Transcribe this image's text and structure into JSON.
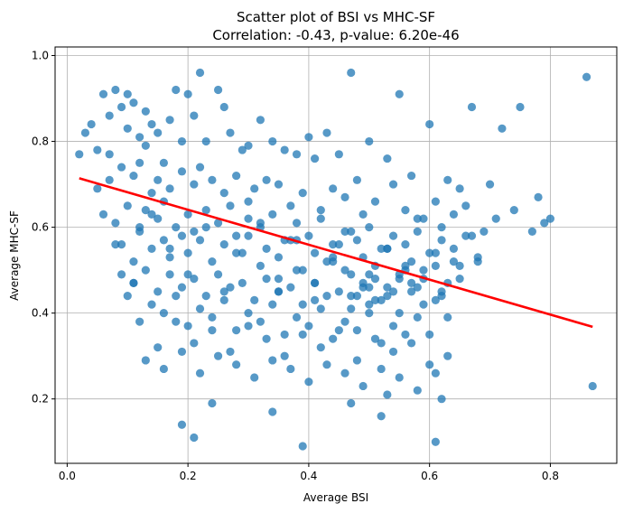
{
  "chart_data": {
    "type": "scatter",
    "title": "Scatter plot of BSI vs MHC-SF",
    "subtitle": "Correlation: -0.43, p-value: 6.20e-46",
    "xlabel": "Average BSI",
    "ylabel": "Average MHC-SF",
    "xlim": [
      -0.02,
      0.91
    ],
    "ylim": [
      0.05,
      1.02
    ],
    "x_ticks": [
      "0.0",
      "0.2",
      "0.4",
      "0.6",
      "0.8"
    ],
    "y_ticks": [
      "0.2",
      "0.4",
      "0.6",
      "0.8",
      "1.0"
    ],
    "grid": true,
    "point_color": "#1f77b4",
    "point_alpha": 0.75,
    "regression_line": {
      "color": "#ff0000",
      "x": [
        0.02,
        0.87
      ],
      "y": [
        0.714,
        0.368
      ]
    },
    "points_x": [
      0.02,
      0.03,
      0.04,
      0.05,
      0.06,
      0.07,
      0.07,
      0.08,
      0.09,
      0.1,
      0.1,
      0.11,
      0.12,
      0.13,
      0.13,
      0.14,
      0.15,
      0.16,
      0.17,
      0.18,
      0.19,
      0.2,
      0.21,
      0.22,
      0.23,
      0.25,
      0.26,
      0.27,
      0.29,
      0.3,
      0.32,
      0.34,
      0.36,
      0.38,
      0.4,
      0.41,
      0.43,
      0.45,
      0.47,
      0.5,
      0.53,
      0.55,
      0.57,
      0.6,
      0.63,
      0.65,
      0.67,
      0.7,
      0.72,
      0.75,
      0.78,
      0.8,
      0.86,
      0.05,
      0.07,
      0.09,
      0.11,
      0.12,
      0.14,
      0.15,
      0.17,
      0.19,
      0.21,
      0.22,
      0.24,
      0.26,
      0.28,
      0.3,
      0.31,
      0.33,
      0.35,
      0.37,
      0.39,
      0.42,
      0.44,
      0.46,
      0.48,
      0.49,
      0.51,
      0.54,
      0.56,
      0.58,
      0.61,
      0.62,
      0.64,
      0.66,
      0.69,
      0.71,
      0.74,
      0.77,
      0.79,
      0.06,
      0.08,
      0.1,
      0.12,
      0.13,
      0.15,
      0.16,
      0.18,
      0.2,
      0.21,
      0.23,
      0.25,
      0.27,
      0.28,
      0.3,
      0.32,
      0.34,
      0.36,
      0.38,
      0.4,
      0.42,
      0.44,
      0.46,
      0.48,
      0.5,
      0.52,
      0.54,
      0.56,
      0.58,
      0.6,
      0.62,
      0.64,
      0.66,
      0.68,
      0.08,
      0.09,
      0.11,
      0.12,
      0.14,
      0.16,
      0.17,
      0.19,
      0.2,
      0.22,
      0.24,
      0.26,
      0.28,
      0.3,
      0.32,
      0.33,
      0.35,
      0.37,
      0.39,
      0.41,
      0.43,
      0.45,
      0.47,
      0.49,
      0.51,
      0.53,
      0.55,
      0.57,
      0.59,
      0.61,
      0.63,
      0.65,
      0.09,
      0.11,
      0.13,
      0.15,
      0.17,
      0.19,
      0.21,
      0.23,
      0.25,
      0.27,
      0.29,
      0.31,
      0.33,
      0.35,
      0.37,
      0.39,
      0.41,
      0.43,
      0.45,
      0.47,
      0.49,
      0.51,
      0.53,
      0.55,
      0.57,
      0.59,
      0.61,
      0.63,
      0.1,
      0.12,
      0.14,
      0.16,
      0.18,
      0.2,
      0.22,
      0.24,
      0.26,
      0.28,
      0.3,
      0.32,
      0.34,
      0.36,
      0.38,
      0.4,
      0.42,
      0.44,
      0.46,
      0.48,
      0.5,
      0.52,
      0.54,
      0.56,
      0.58,
      0.6,
      0.15,
      0.18,
      0.21,
      0.24,
      0.27,
      0.3,
      0.33,
      0.36,
      0.39,
      0.42,
      0.45,
      0.48,
      0.51,
      0.54,
      0.57,
      0.6,
      0.63,
      0.13,
      0.16,
      0.19,
      0.22,
      0.25,
      0.28,
      0.31,
      0.34,
      0.37,
      0.4,
      0.43,
      0.46,
      0.49,
      0.52,
      0.55,
      0.58,
      0.61,
      0.64,
      0.67,
      0.11,
      0.14,
      0.17,
      0.2,
      0.23,
      0.26,
      0.29,
      0.32,
      0.35,
      0.38,
      0.41,
      0.44,
      0.47,
      0.5,
      0.53,
      0.56,
      0.59,
      0.62,
      0.65,
      0.68,
      0.35,
      0.38,
      0.41,
      0.44,
      0.47,
      0.5,
      0.53,
      0.56,
      0.59,
      0.62,
      0.46,
      0.49,
      0.52,
      0.55,
      0.58,
      0.61,
      0.48,
      0.51,
      0.54,
      0.57,
      0.5,
      0.53,
      0.47,
      0.52,
      0.61,
      0.19,
      0.21,
      0.34,
      0.39,
      0.62,
      0.87,
      0.24,
      0.55
    ],
    "points_y": [
      0.77,
      0.82,
      0.84,
      0.78,
      0.91,
      0.86,
      0.71,
      0.92,
      0.88,
      0.83,
      0.91,
      0.89,
      0.81,
      0.87,
      0.79,
      0.84,
      0.82,
      0.75,
      0.85,
      0.92,
      0.8,
      0.91,
      0.86,
      0.96,
      0.8,
      0.92,
      0.88,
      0.82,
      0.78,
      0.79,
      0.85,
      0.8,
      0.78,
      0.77,
      0.81,
      0.76,
      0.82,
      0.77,
      0.96,
      0.8,
      0.76,
      0.91,
      0.72,
      0.84,
      0.71,
      0.69,
      0.88,
      0.7,
      0.83,
      0.88,
      0.67,
      0.62,
      0.95,
      0.69,
      0.77,
      0.74,
      0.72,
      0.75,
      0.68,
      0.71,
      0.69,
      0.73,
      0.7,
      0.74,
      0.71,
      0.68,
      0.72,
      0.66,
      0.69,
      0.71,
      0.7,
      0.65,
      0.68,
      0.64,
      0.69,
      0.67,
      0.71,
      0.63,
      0.66,
      0.7,
      0.64,
      0.62,
      0.66,
      0.6,
      0.63,
      0.65,
      0.59,
      0.62,
      0.64,
      0.59,
      0.61,
      0.63,
      0.61,
      0.65,
      0.6,
      0.64,
      0.62,
      0.66,
      0.6,
      0.63,
      0.59,
      0.64,
      0.61,
      0.65,
      0.58,
      0.62,
      0.6,
      0.63,
      0.57,
      0.61,
      0.58,
      0.62,
      0.56,
      0.59,
      0.57,
      0.6,
      0.55,
      0.58,
      0.56,
      0.59,
      0.54,
      0.57,
      0.55,
      0.58,
      0.53,
      0.56,
      0.56,
      0.52,
      0.59,
      0.55,
      0.57,
      0.53,
      0.58,
      0.54,
      0.57,
      0.52,
      0.56,
      0.54,
      0.58,
      0.51,
      0.55,
      0.53,
      0.57,
      0.5,
      0.54,
      0.52,
      0.56,
      0.49,
      0.53,
      0.51,
      0.55,
      0.48,
      0.52,
      0.5,
      0.54,
      0.47,
      0.51,
      0.49,
      0.47,
      0.5,
      0.45,
      0.49,
      0.46,
      0.48,
      0.44,
      0.49,
      0.46,
      0.47,
      0.43,
      0.48,
      0.45,
      0.46,
      0.42,
      0.47,
      0.44,
      0.45,
      0.41,
      0.46,
      0.43,
      0.44,
      0.4,
      0.45,
      0.42,
      0.43,
      0.39,
      0.44,
      0.38,
      0.42,
      0.4,
      0.44,
      0.37,
      0.41,
      0.39,
      0.43,
      0.36,
      0.4,
      0.38,
      0.42,
      0.35,
      0.39,
      0.37,
      0.41,
      0.34,
      0.38,
      0.36,
      0.4,
      0.33,
      0.37,
      0.35,
      0.39,
      0.35,
      0.32,
      0.38,
      0.33,
      0.36,
      0.31,
      0.37,
      0.34,
      0.3,
      0.35,
      0.32,
      0.36,
      0.29,
      0.34,
      0.31,
      0.33,
      0.28,
      0.3,
      0.29,
      0.27,
      0.31,
      0.26,
      0.3,
      0.28,
      0.25,
      0.29,
      0.27,
      0.24,
      0.28,
      0.26,
      0.23,
      0.27,
      0.25,
      0.22,
      0.26,
      0.52,
      0.58,
      0.47,
      0.63,
      0.55,
      0.49,
      0.6,
      0.45,
      0.54,
      0.61,
      0.48,
      0.57,
      0.43,
      0.52,
      0.59,
      0.46,
      0.55,
      0.5,
      0.62,
      0.44,
      0.48,
      0.52,
      0.45,
      0.5,
      0.47,
      0.53,
      0.44,
      0.49,
      0.46,
      0.51,
      0.48,
      0.45,
      0.5,
      0.47,
      0.43,
      0.49,
      0.46,
      0.51,
      0.44,
      0.48,
      0.45,
      0.47,
      0.42,
      0.21,
      0.19,
      0.16,
      0.1,
      0.14,
      0.11,
      0.17,
      0.09,
      0.2,
      0.23,
      0.19
    ]
  }
}
